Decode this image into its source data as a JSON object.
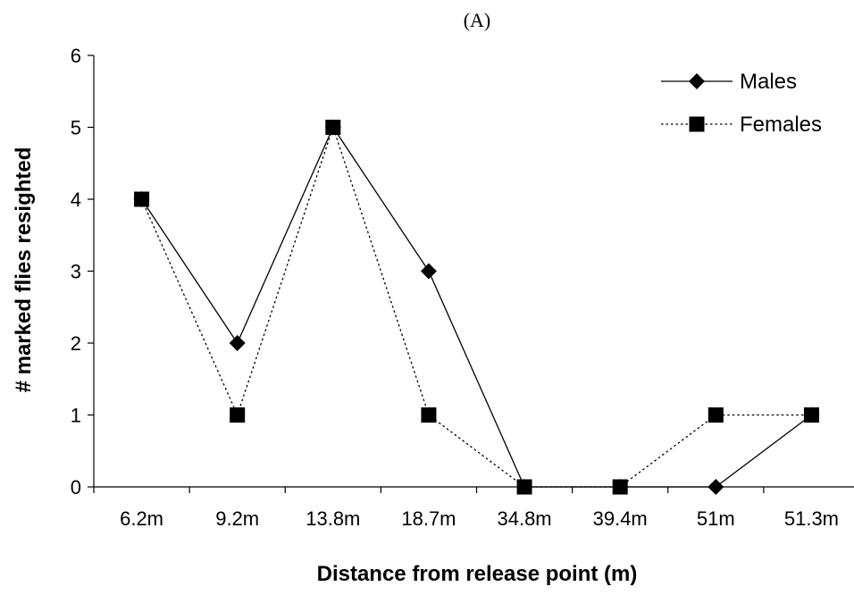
{
  "chart_data": {
    "type": "line",
    "panel_label": "(A)",
    "title": "",
    "xlabel": "Distance from release point (m)",
    "ylabel": "# marked flies resighted",
    "categories": [
      "6.2m",
      "9.2m",
      "13.8m",
      "18.7m",
      "34.8m",
      "39.4m",
      "51m",
      "51.3m"
    ],
    "ylim": [
      0,
      6
    ],
    "yticks": [
      0,
      1,
      2,
      3,
      4,
      5,
      6
    ],
    "grid": false,
    "legend_position": "top-right",
    "series": [
      {
        "name": "Males",
        "values": [
          4,
          2,
          5,
          3,
          0,
          0,
          0,
          1
        ],
        "line_style": "solid",
        "marker": "diamond",
        "color": "#000000"
      },
      {
        "name": "Females",
        "values": [
          4,
          1,
          5,
          1,
          0,
          0,
          1,
          1
        ],
        "line_style": "dotted",
        "marker": "square",
        "color": "#000000"
      }
    ]
  }
}
